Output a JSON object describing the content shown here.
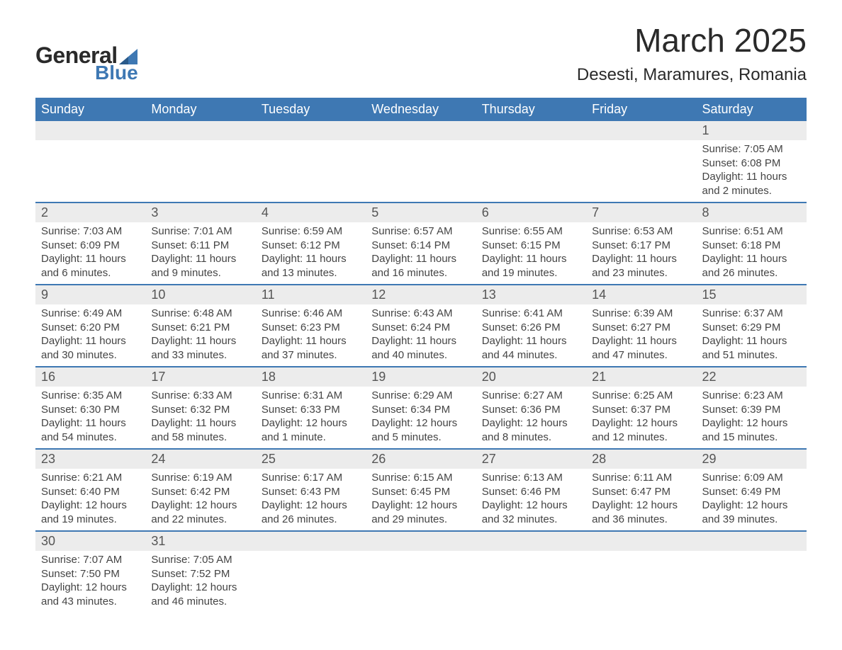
{
  "brand": {
    "word1": "General",
    "word2": "Blue",
    "accent_color": "#3e78b3",
    "text_color": "#2a2a2a"
  },
  "title": "March 2025",
  "location": "Desesti, Maramures, Romania",
  "colors": {
    "header_bg": "#3e78b3",
    "header_text": "#ffffff",
    "daynum_bg": "#ececec",
    "row_border": "#3e78b3",
    "body_text": "#404040"
  },
  "fonts": {
    "title_pt": 46,
    "location_pt": 24,
    "dayhead_pt": 18,
    "daynum_pt": 18,
    "detail_pt": 15
  },
  "day_headers": [
    "Sunday",
    "Monday",
    "Tuesday",
    "Wednesday",
    "Thursday",
    "Friday",
    "Saturday"
  ],
  "weeks": [
    [
      null,
      null,
      null,
      null,
      null,
      null,
      {
        "n": "1",
        "sr": "Sunrise: 7:05 AM",
        "ss": "Sunset: 6:08 PM",
        "d1": "Daylight: 11 hours",
        "d2": "and 2 minutes."
      }
    ],
    [
      {
        "n": "2",
        "sr": "Sunrise: 7:03 AM",
        "ss": "Sunset: 6:09 PM",
        "d1": "Daylight: 11 hours",
        "d2": "and 6 minutes."
      },
      {
        "n": "3",
        "sr": "Sunrise: 7:01 AM",
        "ss": "Sunset: 6:11 PM",
        "d1": "Daylight: 11 hours",
        "d2": "and 9 minutes."
      },
      {
        "n": "4",
        "sr": "Sunrise: 6:59 AM",
        "ss": "Sunset: 6:12 PM",
        "d1": "Daylight: 11 hours",
        "d2": "and 13 minutes."
      },
      {
        "n": "5",
        "sr": "Sunrise: 6:57 AM",
        "ss": "Sunset: 6:14 PM",
        "d1": "Daylight: 11 hours",
        "d2": "and 16 minutes."
      },
      {
        "n": "6",
        "sr": "Sunrise: 6:55 AM",
        "ss": "Sunset: 6:15 PM",
        "d1": "Daylight: 11 hours",
        "d2": "and 19 minutes."
      },
      {
        "n": "7",
        "sr": "Sunrise: 6:53 AM",
        "ss": "Sunset: 6:17 PM",
        "d1": "Daylight: 11 hours",
        "d2": "and 23 minutes."
      },
      {
        "n": "8",
        "sr": "Sunrise: 6:51 AM",
        "ss": "Sunset: 6:18 PM",
        "d1": "Daylight: 11 hours",
        "d2": "and 26 minutes."
      }
    ],
    [
      {
        "n": "9",
        "sr": "Sunrise: 6:49 AM",
        "ss": "Sunset: 6:20 PM",
        "d1": "Daylight: 11 hours",
        "d2": "and 30 minutes."
      },
      {
        "n": "10",
        "sr": "Sunrise: 6:48 AM",
        "ss": "Sunset: 6:21 PM",
        "d1": "Daylight: 11 hours",
        "d2": "and 33 minutes."
      },
      {
        "n": "11",
        "sr": "Sunrise: 6:46 AM",
        "ss": "Sunset: 6:23 PM",
        "d1": "Daylight: 11 hours",
        "d2": "and 37 minutes."
      },
      {
        "n": "12",
        "sr": "Sunrise: 6:43 AM",
        "ss": "Sunset: 6:24 PM",
        "d1": "Daylight: 11 hours",
        "d2": "and 40 minutes."
      },
      {
        "n": "13",
        "sr": "Sunrise: 6:41 AM",
        "ss": "Sunset: 6:26 PM",
        "d1": "Daylight: 11 hours",
        "d2": "and 44 minutes."
      },
      {
        "n": "14",
        "sr": "Sunrise: 6:39 AM",
        "ss": "Sunset: 6:27 PM",
        "d1": "Daylight: 11 hours",
        "d2": "and 47 minutes."
      },
      {
        "n": "15",
        "sr": "Sunrise: 6:37 AM",
        "ss": "Sunset: 6:29 PM",
        "d1": "Daylight: 11 hours",
        "d2": "and 51 minutes."
      }
    ],
    [
      {
        "n": "16",
        "sr": "Sunrise: 6:35 AM",
        "ss": "Sunset: 6:30 PM",
        "d1": "Daylight: 11 hours",
        "d2": "and 54 minutes."
      },
      {
        "n": "17",
        "sr": "Sunrise: 6:33 AM",
        "ss": "Sunset: 6:32 PM",
        "d1": "Daylight: 11 hours",
        "d2": "and 58 minutes."
      },
      {
        "n": "18",
        "sr": "Sunrise: 6:31 AM",
        "ss": "Sunset: 6:33 PM",
        "d1": "Daylight: 12 hours",
        "d2": "and 1 minute."
      },
      {
        "n": "19",
        "sr": "Sunrise: 6:29 AM",
        "ss": "Sunset: 6:34 PM",
        "d1": "Daylight: 12 hours",
        "d2": "and 5 minutes."
      },
      {
        "n": "20",
        "sr": "Sunrise: 6:27 AM",
        "ss": "Sunset: 6:36 PM",
        "d1": "Daylight: 12 hours",
        "d2": "and 8 minutes."
      },
      {
        "n": "21",
        "sr": "Sunrise: 6:25 AM",
        "ss": "Sunset: 6:37 PM",
        "d1": "Daylight: 12 hours",
        "d2": "and 12 minutes."
      },
      {
        "n": "22",
        "sr": "Sunrise: 6:23 AM",
        "ss": "Sunset: 6:39 PM",
        "d1": "Daylight: 12 hours",
        "d2": "and 15 minutes."
      }
    ],
    [
      {
        "n": "23",
        "sr": "Sunrise: 6:21 AM",
        "ss": "Sunset: 6:40 PM",
        "d1": "Daylight: 12 hours",
        "d2": "and 19 minutes."
      },
      {
        "n": "24",
        "sr": "Sunrise: 6:19 AM",
        "ss": "Sunset: 6:42 PM",
        "d1": "Daylight: 12 hours",
        "d2": "and 22 minutes."
      },
      {
        "n": "25",
        "sr": "Sunrise: 6:17 AM",
        "ss": "Sunset: 6:43 PM",
        "d1": "Daylight: 12 hours",
        "d2": "and 26 minutes."
      },
      {
        "n": "26",
        "sr": "Sunrise: 6:15 AM",
        "ss": "Sunset: 6:45 PM",
        "d1": "Daylight: 12 hours",
        "d2": "and 29 minutes."
      },
      {
        "n": "27",
        "sr": "Sunrise: 6:13 AM",
        "ss": "Sunset: 6:46 PM",
        "d1": "Daylight: 12 hours",
        "d2": "and 32 minutes."
      },
      {
        "n": "28",
        "sr": "Sunrise: 6:11 AM",
        "ss": "Sunset: 6:47 PM",
        "d1": "Daylight: 12 hours",
        "d2": "and 36 minutes."
      },
      {
        "n": "29",
        "sr": "Sunrise: 6:09 AM",
        "ss": "Sunset: 6:49 PM",
        "d1": "Daylight: 12 hours",
        "d2": "and 39 minutes."
      }
    ],
    [
      {
        "n": "30",
        "sr": "Sunrise: 7:07 AM",
        "ss": "Sunset: 7:50 PM",
        "d1": "Daylight: 12 hours",
        "d2": "and 43 minutes."
      },
      {
        "n": "31",
        "sr": "Sunrise: 7:05 AM",
        "ss": "Sunset: 7:52 PM",
        "d1": "Daylight: 12 hours",
        "d2": "and 46 minutes."
      },
      null,
      null,
      null,
      null,
      null
    ]
  ]
}
